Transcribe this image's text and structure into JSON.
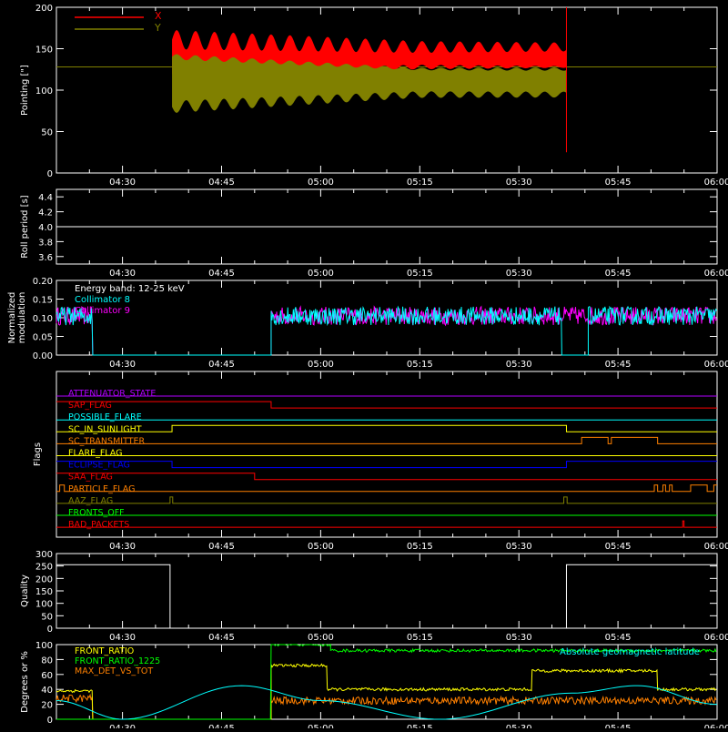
{
  "colors": {
    "background": "#000000",
    "axes": "#ffffff",
    "red": "#ff0000",
    "olive": "#808000",
    "cyan": "#00ffff",
    "magenta": "#ff00ff",
    "yellow": "#ffff00",
    "green": "#00ff00",
    "orange": "#ff8000",
    "blue": "#0000ff",
    "purple": "#b000ff"
  },
  "chart_data": [
    {
      "id": "pointing",
      "type": "area",
      "ylabel": "Pointing [\"]",
      "ylim": [
        0,
        200
      ],
      "yticks": [
        "0",
        "50",
        "100",
        "150",
        "200"
      ],
      "xticks": [
        "04:30",
        "04:45",
        "05:00",
        "05:15",
        "05:30",
        "05:45",
        "06:00"
      ],
      "xrange_minutes": [
        20,
        120
      ],
      "legend": {
        "placement": "top-left"
      },
      "series": [
        {
          "name": "X",
          "color": "#ff0000",
          "start": 37.5,
          "end": 97.2,
          "center": 140,
          "amplitude_start": 38,
          "amplitude_end": 22
        },
        {
          "name": "Y",
          "color": "#808000",
          "start": 37.5,
          "end": 97.2,
          "center": 110,
          "amplitude_start": 55,
          "amplitude_end": 28
        }
      ],
      "reference_level": 128,
      "spike": {
        "x": 97.2,
        "ymin": 25,
        "ymax": 200
      }
    },
    {
      "id": "roll",
      "type": "line",
      "ylabel": "Roll period [s]",
      "ylim": [
        3.5,
        4.5
      ],
      "yticks": [
        "3.6",
        "3.8",
        "4.0",
        "4.2",
        "4.4"
      ],
      "xticks": [
        "04:30",
        "04:45",
        "05:00",
        "05:15",
        "05:30",
        "05:45",
        "06:00"
      ],
      "series": [
        {
          "name": "",
          "color": "#ffffff",
          "value": 4.0
        }
      ]
    },
    {
      "id": "modulation",
      "type": "line",
      "ylabel": "Normalized modulation",
      "ylim": [
        0,
        0.2
      ],
      "yticks": [
        "0.00",
        "0.05",
        "0.10",
        "0.15",
        "0.20"
      ],
      "xticks": [
        "04:30",
        "04:45",
        "05:00",
        "05:15",
        "05:30",
        "05:45",
        "06:00"
      ],
      "annotation": "Energy band: 12-25 keV",
      "series": [
        {
          "name": "Collimator 8",
          "color": "#00ffff",
          "segments": [
            [
              20,
              25.5
            ],
            [
              52.5,
              96.5
            ],
            [
              100.5,
              120
            ]
          ],
          "mean": 0.105,
          "noise": 0.025
        },
        {
          "name": "Collimator 9",
          "color": "#ff00ff",
          "segments": [
            [
              20,
              25.5
            ],
            [
              52.5,
              120
            ]
          ],
          "mean": 0.105,
          "noise": 0.025
        }
      ]
    },
    {
      "id": "flags",
      "type": "line",
      "ylabel": "Flags",
      "xticks": [
        "04:30",
        "04:45",
        "05:00",
        "05:15",
        "05:30",
        "05:45",
        "06:00"
      ],
      "series": [
        {
          "name": "ATTENUATOR_STATE",
          "color": "#b000ff",
          "steps": [
            [
              20,
              0
            ]
          ]
        },
        {
          "name": "SAP_FLAG",
          "color": "#ff0000",
          "steps": [
            [
              20,
              1
            ],
            [
              52.5,
              0
            ]
          ]
        },
        {
          "name": "POSSIBLE_FLARE",
          "color": "#00ffff",
          "steps": [
            [
              20,
              0
            ]
          ]
        },
        {
          "name": "SC_IN_SUNLIGHT",
          "color": "#ffff00",
          "steps": [
            [
              20,
              0
            ],
            [
              37.5,
              1
            ],
            [
              97.2,
              0
            ]
          ]
        },
        {
          "name": "SC_TRANSMITTER",
          "color": "#ff8000",
          "steps": [
            [
              20,
              0
            ],
            [
              99.5,
              1
            ],
            [
              103.5,
              0
            ],
            [
              104,
              1
            ],
            [
              111,
              0
            ]
          ]
        },
        {
          "name": "FLARE_FLAG",
          "color": "#ffff00",
          "steps": [
            [
              20,
              0
            ]
          ]
        },
        {
          "name": "ECLIPSE_FLAG",
          "color": "#0000ff",
          "steps": [
            [
              20,
              1
            ],
            [
              37.5,
              0
            ],
            [
              97.2,
              1
            ]
          ]
        },
        {
          "name": "SAA_FLAG",
          "color": "#ff0000",
          "steps": [
            [
              20,
              1
            ],
            [
              50.0,
              0
            ]
          ]
        },
        {
          "name": "PARTICLE_FLAG",
          "color": "#ff8000",
          "steps": [
            [
              20,
              0
            ],
            [
              20.5,
              1
            ],
            [
              21.2,
              0
            ],
            [
              105,
              0
            ],
            [
              110.5,
              1
            ],
            [
              111,
              0
            ],
            [
              111.8,
              1
            ],
            [
              112.2,
              0
            ],
            [
              112.8,
              1
            ],
            [
              113.2,
              0
            ],
            [
              116,
              1
            ],
            [
              118.5,
              0
            ],
            [
              119.5,
              1
            ],
            [
              120,
              1
            ]
          ]
        },
        {
          "name": "AAZ_FLAG",
          "color": "#808000",
          "steps": [
            [
              20,
              0
            ],
            [
              37.2,
              1
            ],
            [
              37.6,
              0
            ],
            [
              96.8,
              1
            ],
            [
              97.3,
              0
            ]
          ]
        },
        {
          "name": "FRONTS_OFF",
          "color": "#00ff00",
          "steps": [
            [
              20,
              0
            ]
          ]
        },
        {
          "name": "BAD_PACKETS",
          "color": "#ff0000",
          "steps": [
            [
              20,
              0
            ],
            [
              114.8,
              1
            ],
            [
              115.0,
              0
            ]
          ]
        }
      ]
    },
    {
      "id": "quality",
      "type": "line",
      "ylabel": "Quality",
      "ylim": [
        0,
        300
      ],
      "yticks": [
        "0",
        "50",
        "100",
        "150",
        "200",
        "250",
        "300"
      ],
      "xticks": [
        "04:30",
        "04:45",
        "05:00",
        "05:15",
        "05:30",
        "05:45",
        "06:00"
      ],
      "series": [
        {
          "name": "",
          "color": "#ffffff",
          "steps": [
            [
              20,
              255
            ],
            [
              37.2,
              0
            ],
            [
              97.2,
              255
            ],
            [
              120,
              255
            ]
          ]
        }
      ]
    },
    {
      "id": "degrees",
      "type": "line",
      "ylabel": "Degrees or %",
      "ylim": [
        0,
        100
      ],
      "yticks": [
        "0",
        "20",
        "40",
        "60",
        "80",
        "100"
      ],
      "xticks": [
        "04:30",
        "04:45",
        "05:00",
        "05:15",
        "05:30",
        "05:45",
        "06:00"
      ],
      "annotation": "Absolute geomagnetic latitude",
      "series": [
        {
          "name": "FRONT_RATIO",
          "color": "#ffff00",
          "steps": [
            [
              20,
              38
            ],
            [
              25.5,
              0
            ],
            [
              52.5,
              72
            ],
            [
              61,
              40
            ],
            [
              92,
              65
            ],
            [
              111,
              40
            ],
            [
              120,
              40
            ]
          ]
        },
        {
          "name": "FRONT_RATIO_1225",
          "color": "#00ff00",
          "steps": [
            [
              20,
              0
            ],
            [
              52.5,
              100
            ],
            [
              61.5,
              92
            ],
            [
              120,
              92
            ]
          ]
        },
        {
          "name": "MAX_DET_VS_TOT",
          "color": "#ff8000",
          "steps": [
            [
              20,
              28
            ],
            [
              25.5,
              0
            ],
            [
              52.5,
              25
            ],
            [
              120,
              25
            ]
          ]
        },
        {
          "name": "Absolute geomagnetic latitude",
          "color": "#00ffff",
          "curve": [
            [
              20,
              25
            ],
            [
              30,
              0
            ],
            [
              48,
              45
            ],
            [
              60,
              25
            ],
            [
              78,
              0
            ],
            [
              98,
              35
            ],
            [
              108,
              45
            ],
            [
              120,
              20
            ]
          ]
        }
      ]
    }
  ]
}
